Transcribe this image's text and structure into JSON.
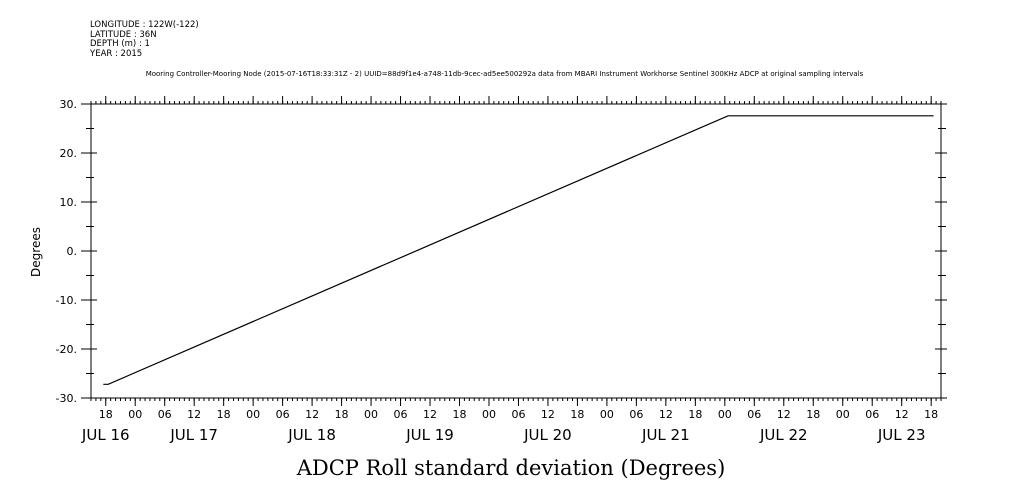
{
  "header": {
    "longitude": "LONGITUDE : 122W(-122)",
    "latitude": "LATITUDE : 36N",
    "depth": "DEPTH (m) : 1",
    "year": "YEAR : 2015",
    "subtitle": "Mooring Controller-Mooring Node (2015-07-16T18:33:31Z - 2) UUID=88d9f1e4-a748-11db-9cec-ad5ee500292a data from MBARI Instrument Workhorse Sentinel 300KHz ADCP at original sampling intervals"
  },
  "chart_data": {
    "type": "line",
    "xlabel": "ADCP Roll standard deviation (Degrees)",
    "ylabel": "Degrees",
    "ylim": [
      -30,
      30
    ],
    "yticks": [
      "30.",
      "20.",
      "10.",
      "0.",
      "-10.",
      "-20.",
      "-30."
    ],
    "xlim": [
      "2015-07-16T15:00",
      "2015-07-23T20:00"
    ],
    "hour_ticks": [
      "18",
      "00",
      "06",
      "12",
      "18",
      "00",
      "06",
      "12",
      "18",
      "00",
      "06",
      "12",
      "18",
      "00",
      "06",
      "12",
      "18",
      "00",
      "06",
      "12",
      "18",
      "00",
      "06",
      "12",
      "18",
      "00",
      "06",
      "12",
      "18"
    ],
    "date_labels": [
      "JUL 16",
      "JUL 17",
      "JUL 18",
      "JUL 19",
      "JUL 20",
      "JUL 21",
      "JUL 22",
      "JUL 23"
    ],
    "series": [
      {
        "points": [
          [
            "2015-07-16T17:30",
            -27.2
          ],
          [
            "2015-07-16T18:30",
            -27.2
          ],
          [
            "2015-07-22T00:40",
            27.6
          ],
          [
            "2015-07-23T18:30",
            27.6
          ]
        ]
      }
    ],
    "grid": false
  }
}
